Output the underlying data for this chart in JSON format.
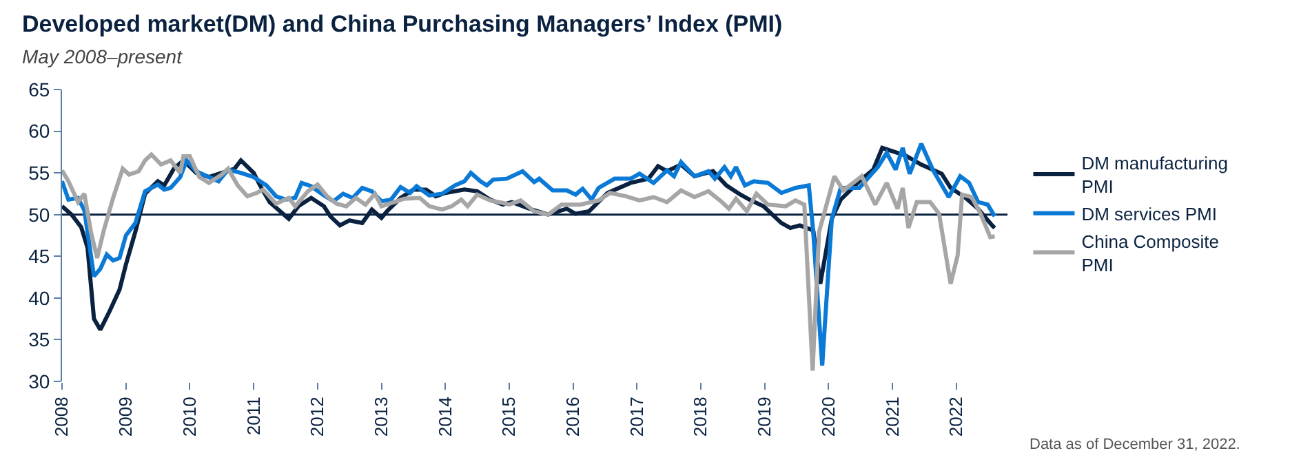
{
  "chart_data": {
    "type": "line",
    "title": "Developed market(DM) and China Purchasing Managers’ Index (PMI)",
    "subtitle": "May 2008–present",
    "annotations": [
      "Data as of December 31, 2022."
    ],
    "xlim": [
      2008,
      2022.8
    ],
    "xticks": [
      2008,
      2009,
      2010,
      2011,
      2012,
      2013,
      2014,
      2015,
      2016,
      2017,
      2018,
      2019,
      2020,
      2021,
      2022
    ],
    "ylim": [
      30,
      65
    ],
    "yticks": [
      30,
      35,
      40,
      45,
      50,
      55,
      60,
      65
    ],
    "grid": false,
    "legend": "right",
    "line_style": "solid",
    "marker": "none",
    "ref_lines": [
      {
        "axis": "y",
        "value": 50,
        "color": "#0a2240"
      }
    ],
    "series": [
      {
        "name": "DM manufacturing PMI",
        "color": "#0a2240",
        "x": [
          2008.0,
          2008.15,
          2008.3,
          2008.4,
          2008.5,
          2008.6,
          2008.75,
          2008.9,
          2009.0,
          2009.15,
          2009.3,
          2009.5,
          2009.6,
          2009.75,
          2009.9,
          2010.1,
          2010.3,
          2010.5,
          2010.7,
          2010.8,
          2011.0,
          2011.1,
          2011.25,
          2011.4,
          2011.55,
          2011.7,
          2011.9,
          2012.1,
          2012.2,
          2012.35,
          2012.5,
          2012.7,
          2012.85,
          2013.0,
          2013.1,
          2013.3,
          2013.5,
          2013.7,
          2013.85,
          2014.0,
          2014.3,
          2014.5,
          2014.7,
          2014.9,
          2015.04,
          2015.32,
          2015.61,
          2015.9,
          2016.04,
          2016.25,
          2016.54,
          2016.9,
          2017.18,
          2017.33,
          2017.47,
          2017.69,
          2017.9,
          2018.19,
          2018.4,
          2018.62,
          2018.76,
          2018.98,
          2019.26,
          2019.4,
          2019.55,
          2019.76,
          2019.87,
          2020.05,
          2020.19,
          2020.48,
          2020.7,
          2020.84,
          2021.2,
          2021.45,
          2021.77,
          2021.91,
          2022.13,
          2022.34,
          2022.56,
          2022.6
        ],
        "values": [
          51,
          50,
          48.5,
          46,
          37.5,
          36.2,
          38.5,
          41,
          44,
          48,
          52.5,
          54,
          53.5,
          55.5,
          56.5,
          55,
          54.5,
          55,
          55.5,
          56.5,
          55,
          53.5,
          51.5,
          50.5,
          49.5,
          51,
          52,
          51,
          49.8,
          48.7,
          49.3,
          49,
          50.6,
          49.6,
          50.5,
          52,
          53,
          53,
          52.2,
          52.6,
          53,
          52.8,
          51.8,
          51.2,
          51.5,
          50.7,
          50,
          50.7,
          50.1,
          50.4,
          52.6,
          53.8,
          54.3,
          55.8,
          55.2,
          56,
          54.6,
          55.2,
          53.5,
          52.4,
          51.8,
          51,
          49,
          48.4,
          48.7,
          48.1,
          41.7,
          49.5,
          51.8,
          54,
          55.4,
          58,
          57.1,
          56,
          54.9,
          53.2,
          52.1,
          50.7,
          48.7,
          48.4
        ]
      },
      {
        "name": "DM services PMI",
        "color": "#0a7ad6",
        "x": [
          2008.0,
          2008.1,
          2008.25,
          2008.35,
          2008.5,
          2008.6,
          2008.7,
          2008.8,
          2008.9,
          2009.0,
          2009.15,
          2009.3,
          2009.5,
          2009.6,
          2009.7,
          2009.85,
          2009.95,
          2010.1,
          2010.3,
          2010.45,
          2010.6,
          2010.8,
          2011.0,
          2011.2,
          2011.35,
          2011.5,
          2011.65,
          2011.75,
          2011.9,
          2012.1,
          2012.25,
          2012.4,
          2012.55,
          2012.7,
          2012.85,
          2013.0,
          2013.15,
          2013.3,
          2013.45,
          2013.55,
          2013.75,
          2013.95,
          2014.15,
          2014.3,
          2014.4,
          2014.55,
          2014.65,
          2014.75,
          2014.96,
          2015.21,
          2015.39,
          2015.47,
          2015.68,
          2015.9,
          2016.04,
          2016.15,
          2016.29,
          2016.4,
          2016.65,
          2016.9,
          2017.04,
          2017.26,
          2017.47,
          2017.58,
          2017.69,
          2017.9,
          2018.12,
          2018.22,
          2018.37,
          2018.47,
          2018.55,
          2018.69,
          2018.83,
          2019.05,
          2019.26,
          2019.48,
          2019.69,
          2019.76,
          2019.9,
          2020.05,
          2020.19,
          2020.48,
          2020.77,
          2020.91,
          2021.05,
          2021.16,
          2021.27,
          2021.45,
          2021.63,
          2021.88,
          2022.06,
          2022.2,
          2022.34,
          2022.49,
          2022.6
        ],
        "values": [
          54,
          51.8,
          52,
          50.5,
          42.6,
          43.5,
          45.2,
          44.5,
          44.8,
          47.5,
          49,
          52.8,
          53.6,
          53,
          53.2,
          54.5,
          56.5,
          55.2,
          54.5,
          54,
          55.4,
          55,
          54.5,
          53.5,
          52.2,
          51.8,
          52,
          53.8,
          53.4,
          52.3,
          51.6,
          52.5,
          52,
          53.2,
          52.8,
          51.6,
          51.8,
          53.3,
          52.6,
          53.4,
          52.3,
          52.5,
          53.5,
          54,
          55,
          54,
          53.5,
          54.2,
          54.3,
          55.2,
          53.9,
          54.3,
          52.9,
          52.9,
          52.4,
          53.1,
          51.8,
          53.2,
          54.3,
          54.3,
          54.9,
          53.8,
          55.3,
          54.6,
          56.3,
          54.6,
          55.2,
          54.3,
          55.7,
          54.6,
          55.7,
          53.5,
          54,
          53.8,
          52.6,
          53.2,
          53.5,
          47.9,
          31.9,
          49.5,
          53.2,
          53.2,
          55.7,
          57.4,
          55.4,
          58,
          54.9,
          58.5,
          55.4,
          52.1,
          54.6,
          53.8,
          51.5,
          51.2,
          49.8
        ]
      },
      {
        "name": "China Composite PMI",
        "color": "#a6a6a6",
        "x": [
          2008.0,
          2008.1,
          2008.25,
          2008.35,
          2008.45,
          2008.55,
          2008.65,
          2008.8,
          2008.95,
          2009.05,
          2009.2,
          2009.3,
          2009.4,
          2009.55,
          2009.7,
          2009.85,
          2009.9,
          2010.0,
          2010.15,
          2010.3,
          2010.5,
          2010.6,
          2010.75,
          2010.9,
          2011.05,
          2011.15,
          2011.35,
          2011.55,
          2011.65,
          2011.85,
          2012.0,
          2012.15,
          2012.3,
          2012.45,
          2012.6,
          2012.75,
          2012.9,
          2013.0,
          2013.2,
          2013.35,
          2013.6,
          2013.75,
          2013.95,
          2014.1,
          2014.25,
          2014.35,
          2014.5,
          2014.7,
          2014.9,
          2015.0,
          2015.18,
          2015.39,
          2015.61,
          2015.82,
          2016.11,
          2016.4,
          2016.58,
          2016.83,
          2017.04,
          2017.26,
          2017.47,
          2017.69,
          2017.9,
          2018.12,
          2018.33,
          2018.44,
          2018.55,
          2018.72,
          2018.87,
          2019.05,
          2019.33,
          2019.48,
          2019.62,
          2019.75,
          2019.85,
          2020.09,
          2020.23,
          2020.52,
          2020.73,
          2020.91,
          2021.08,
          2021.16,
          2021.25,
          2021.38,
          2021.59,
          2021.73,
          2021.91,
          2022.02,
          2022.09,
          2022.24,
          2022.38,
          2022.53,
          2022.6
        ],
        "values": [
          55.3,
          54,
          51.5,
          52.5,
          48,
          44.8,
          48,
          52,
          55.5,
          54.8,
          55.2,
          56.5,
          57.2,
          56,
          56.5,
          55,
          57,
          57,
          54.5,
          53.8,
          54.8,
          55.5,
          53.5,
          52.2,
          52.6,
          53,
          51.3,
          52,
          51,
          52.8,
          53.6,
          52.2,
          51.3,
          51,
          52,
          51.2,
          52.5,
          51,
          51.5,
          51.9,
          52,
          51,
          50.6,
          51,
          51.8,
          51,
          52.4,
          51.7,
          51.4,
          51.2,
          51.7,
          50.4,
          50,
          51.2,
          51.2,
          51.7,
          52.6,
          52.2,
          51.7,
          52.1,
          51.5,
          52.9,
          52.1,
          52.8,
          51.5,
          50.7,
          51.9,
          50.4,
          52.5,
          51.2,
          51,
          51.7,
          51.2,
          31.3,
          47.9,
          54.6,
          52.9,
          54.6,
          51.2,
          53.8,
          50.7,
          53.2,
          48.4,
          51.5,
          51.5,
          50.1,
          41.7,
          45.1,
          52.4,
          52.1,
          50.1,
          47.3,
          47.4
        ]
      }
    ]
  }
}
